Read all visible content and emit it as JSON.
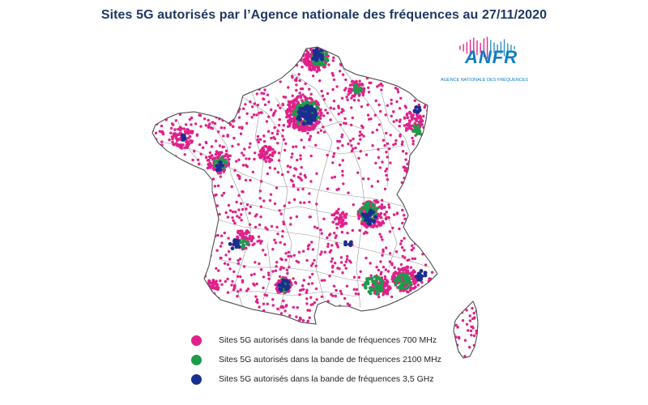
{
  "title": "Sites 5G autorisés par l’Agence nationale des fréquences au 27/11/2020",
  "logo": {
    "name": "ANFR",
    "subtitle": "AGENCE NATIONALE DES FRÉQUENCES",
    "color": "#0b7dc4",
    "accent": "#e4007e"
  },
  "colors": {
    "band_700": "#e0218a",
    "band_2100": "#1e9b4a",
    "band_3500": "#1a2f8f",
    "land": "#ffffff",
    "borders": "#777777"
  },
  "legend": [
    {
      "label": "Sites 5G autorisés dans la bande de fréquences 700 MHz",
      "color": "#e0218a"
    },
    {
      "label": "Sites 5G autorisés dans la bande de fréquences 2100 MHz",
      "color": "#1e9b4a"
    },
    {
      "label": "Sites 5G autorisés dans la bande de fréquences 3,5 GHz",
      "color": "#1a2f8f"
    }
  ]
}
